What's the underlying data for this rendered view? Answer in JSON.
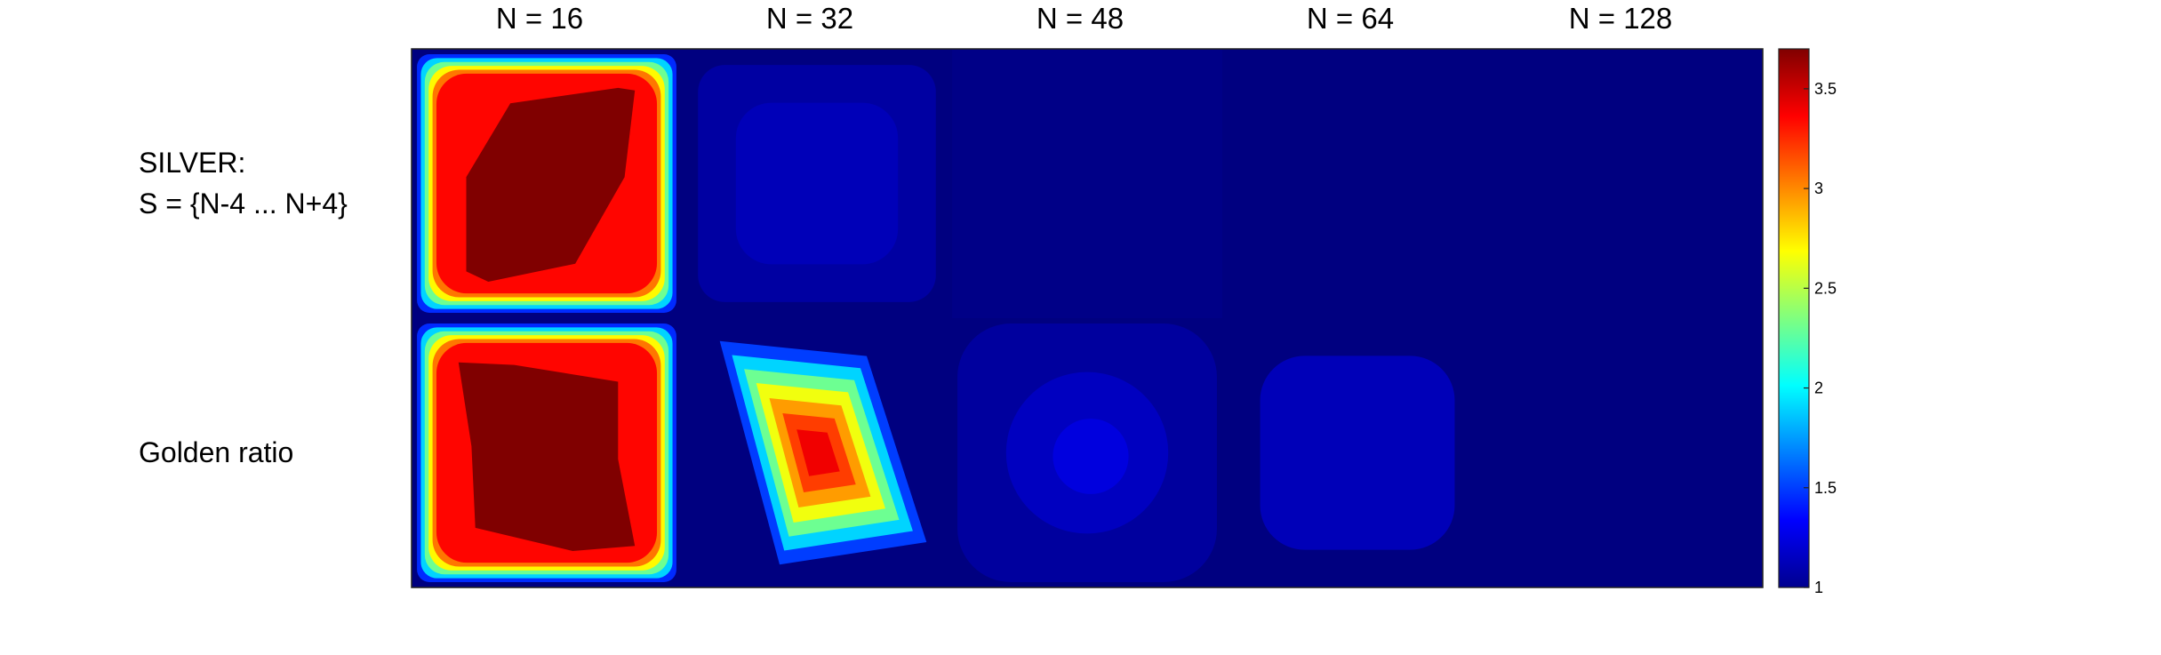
{
  "chart_data": {
    "type": "heatmap",
    "columns": [
      "N = 16",
      "N = 32",
      "N = 48",
      "N = 64",
      "N = 128"
    ],
    "rows": [
      {
        "label": "SILVER:\nS = {N-4 ... N+4}",
        "panels": [
          {
            "n": 16,
            "shape": "silver",
            "peak": 3.7
          },
          {
            "n": 32,
            "shape": "faint",
            "peak": 1.15
          },
          {
            "n": 48,
            "shape": "flat",
            "peak": 1.02
          },
          {
            "n": 64,
            "shape": "flat",
            "peak": 1.0
          },
          {
            "n": 128,
            "shape": "flat",
            "peak": 1.0
          }
        ]
      },
      {
        "label": "Golden ratio",
        "panels": [
          {
            "n": 16,
            "shape": "golden",
            "peak": 3.7
          },
          {
            "n": 32,
            "shape": "diamond",
            "peak": 3.4
          },
          {
            "n": 48,
            "shape": "soft",
            "peak": 1.25
          },
          {
            "n": 64,
            "shape": "square",
            "peak": 1.15
          },
          {
            "n": 128,
            "shape": "flat",
            "peak": 1.0
          }
        ]
      }
    ],
    "colorbar": {
      "colormap": "jet",
      "range": [
        1,
        3.7
      ],
      "ticks": [
        "1",
        "1.5",
        "2",
        "2.5",
        "3",
        "3.5"
      ]
    },
    "base_color": "#00008b"
  }
}
